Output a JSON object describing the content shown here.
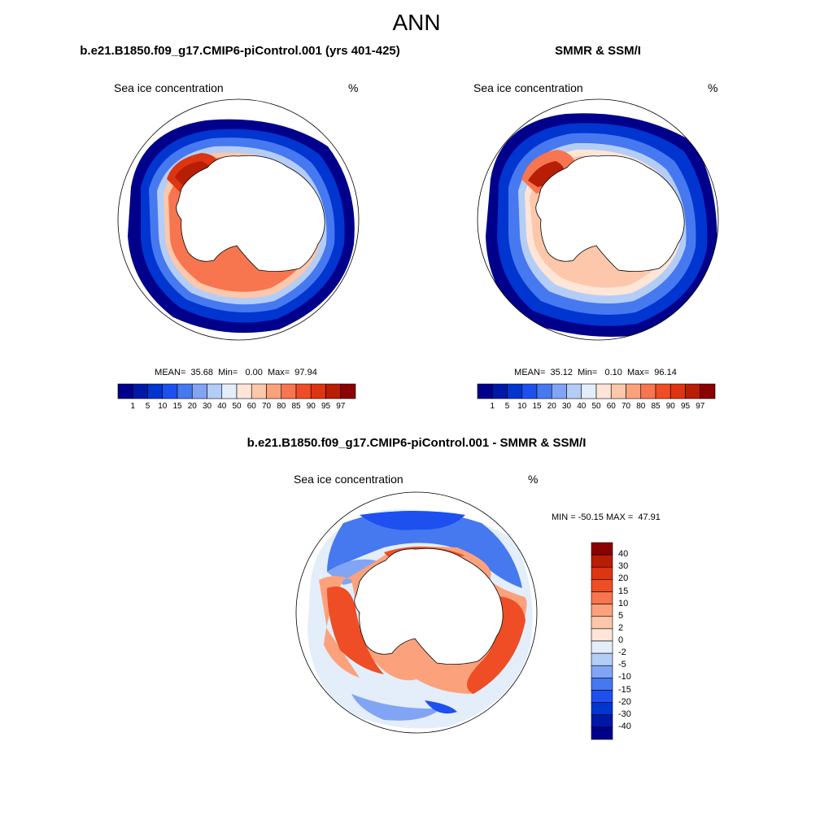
{
  "title": "ANN",
  "colors": {
    "model_obs_scale": [
      "#00008b",
      "#0018a8",
      "#0035d0",
      "#1e50f0",
      "#4678f0",
      "#82a4f5",
      "#b4cdf7",
      "#e3eefa",
      "#fde5d8",
      "#fcc7aa",
      "#fba27d",
      "#f7754f",
      "#ee4d25",
      "#dd3511",
      "#b81d05",
      "#8b0000"
    ],
    "diff_scale": [
      "#00008b",
      "#0018a8",
      "#0035d0",
      "#1e50f0",
      "#4678f0",
      "#82a4f5",
      "#b4cdf7",
      "#e3eefa",
      "#fde5d8",
      "#fcc7aa",
      "#fba27d",
      "#f7754f",
      "#ee4d25",
      "#dd3511",
      "#b81d05",
      "#8b0000"
    ],
    "land": "#ffffff",
    "ocean": "#ffffff"
  },
  "panels": {
    "model": {
      "title": "b.e21.B1850.f09_g17.CMIP6-piControl.001 (yrs 401-425)",
      "variable": "Sea ice concentration",
      "units": "%",
      "stats": "MEAN=  35.68  Min=   0.00  Max=  97.94"
    },
    "obs": {
      "title": "SMMR & SSM/I",
      "variable": "Sea ice concentration",
      "units": "%",
      "stats": "MEAN=  35.12  Min=   0.10  Max=  96.14"
    },
    "diff": {
      "title": "b.e21.B1850.f09_g17.CMIP6-piControl.001 - SMMR & SSM/I",
      "variable": "Sea ice concentration",
      "units": "%",
      "minmax": "MIN = -50.15 MAX =  47.91"
    }
  },
  "colorbar_levels": [
    "1",
    "5",
    "10",
    "15",
    "20",
    "30",
    "40",
    "50",
    "60",
    "70",
    "80",
    "85",
    "90",
    "95",
    "97"
  ],
  "diff_levels": [
    "40",
    "30",
    "20",
    "15",
    "10",
    "5",
    "2",
    "0",
    "-2",
    "-5",
    "-10",
    "-15",
    "-20",
    "-30",
    "-40"
  ]
}
